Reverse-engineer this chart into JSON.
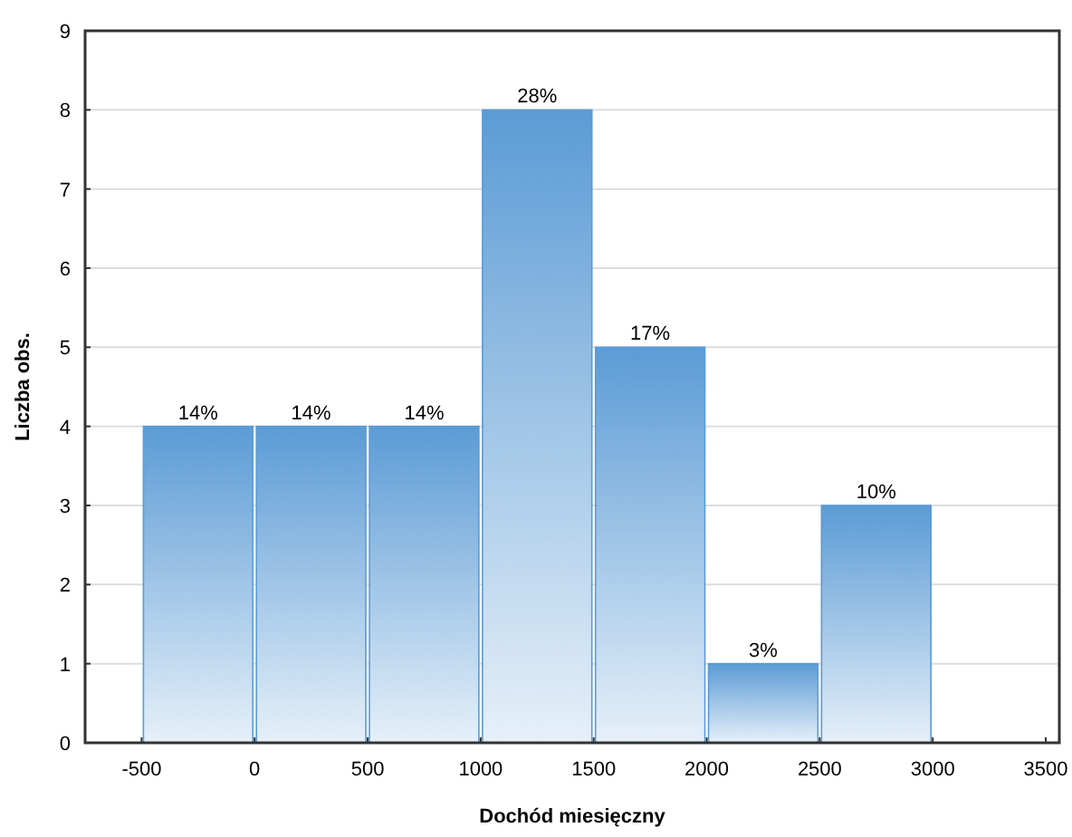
{
  "chart_data": {
    "type": "histogram",
    "xlabel": "Dochód miesięczny",
    "ylabel": "Liczba obs.",
    "bins": [
      -500,
      0,
      500,
      1000,
      1500,
      2000,
      2500,
      3000
    ],
    "values": [
      4,
      4,
      4,
      8,
      5,
      1,
      3
    ],
    "annotations": [
      {
        "text": "14%",
        "x": -250,
        "y": 4
      },
      {
        "text": "14%",
        "x": 250,
        "y": 4
      },
      {
        "text": "14%",
        "x": 750,
        "y": 4
      },
      {
        "text": "28%",
        "x": 1250,
        "y": 8
      },
      {
        "text": "17%",
        "x": 1750,
        "y": 5
      },
      {
        "text": "3%",
        "x": 2250,
        "y": 1
      },
      {
        "text": "10%",
        "x": 2750,
        "y": 3
      }
    ],
    "color": "#5b9bd5",
    "xlim": [
      -750,
      3560
    ],
    "xticks": [
      -500,
      0,
      500,
      1000,
      1500,
      2000,
      2500,
      3000,
      3500
    ],
    "ylim": [
      0,
      9
    ],
    "yticks": [
      0,
      1,
      2,
      3,
      4,
      5,
      6,
      7,
      8,
      9
    ],
    "grid": "y"
  }
}
